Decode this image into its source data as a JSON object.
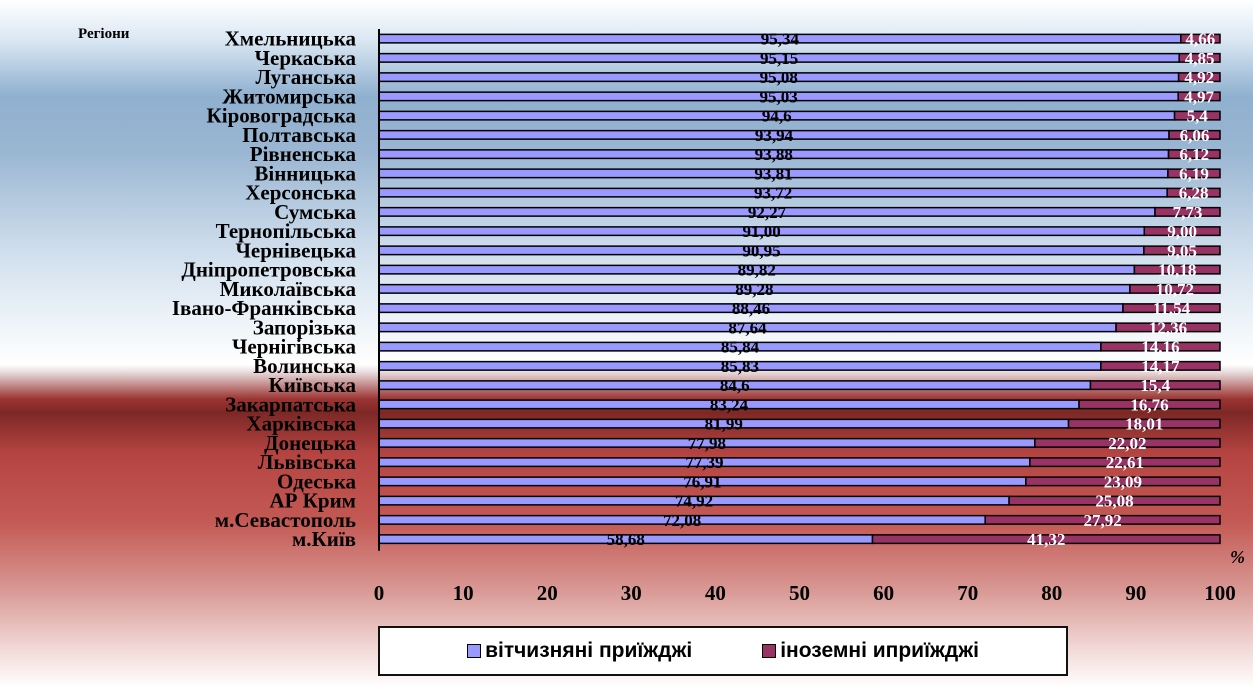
{
  "chart_data": {
    "type": "bar",
    "orientation": "horizontal",
    "stacked": true,
    "title": "",
    "ylabel": "Регіони",
    "xlabel": "%",
    "xlim": [
      0,
      100
    ],
    "xticks": [
      "0",
      "10",
      "20",
      "30",
      "40",
      "50",
      "60",
      "70",
      "80",
      "90",
      "100"
    ],
    "categories": [
      "Хмельницька",
      "Черкаська",
      "Луганська",
      "Житомирська",
      "Кіровоградська",
      "Полтавська",
      "Рівненська",
      "Вінницька",
      "Херсонська",
      "Сумська",
      "Тернопільська",
      "Чернівецька",
      "Дніпропетровська",
      "Миколаївська",
      "Івано-Франківська",
      "Запорізька",
      "Чернігівська",
      "Волинська",
      "Київська",
      "Закарпатська",
      "Харківська",
      "Донецька",
      "Львівська",
      "Одеська",
      "АР Крим",
      "м.Севастополь",
      "м.Київ"
    ],
    "series": [
      {
        "name": "вітчизняні приїжджі",
        "color": "#9999ff",
        "values": [
          95.34,
          95.15,
          95.08,
          95.03,
          94.6,
          93.94,
          93.88,
          93.81,
          93.72,
          92.27,
          91.0,
          90.95,
          89.82,
          89.28,
          88.46,
          87.64,
          85.84,
          85.83,
          84.6,
          83.24,
          81.99,
          77.98,
          77.39,
          76.91,
          74.92,
          72.08,
          58.68
        ],
        "labels": [
          "95,34",
          "95,15",
          "95,08",
          "95,03",
          "94,6",
          "93,94",
          "93,88",
          "93,81",
          "93,72",
          "92,27",
          "91,00",
          "90,95",
          "89,82",
          "89,28",
          "88,46",
          "87,64",
          "85,84",
          "85,83",
          "84,6",
          "83,24",
          "81,99",
          "77,98",
          "77,39",
          "76,91",
          "74,92",
          "72,08",
          "58,68"
        ]
      },
      {
        "name": "іноземні иприїжджі",
        "color": "#993366",
        "values": [
          4.66,
          4.85,
          4.92,
          4.97,
          5.4,
          6.06,
          6.12,
          6.19,
          6.28,
          7.73,
          9.0,
          9.05,
          10.18,
          10.72,
          11.54,
          12.36,
          14.16,
          14.17,
          15.4,
          16.76,
          18.01,
          22.02,
          22.61,
          23.09,
          25.08,
          27.92,
          41.32
        ],
        "labels": [
          "4,66",
          "4,85",
          "4,92",
          "4,97",
          "5,4",
          "6,06",
          "6,12",
          "6,19",
          "6,28",
          "7,73",
          "9,00",
          "9,05",
          "10,18",
          "10,72",
          "11,54",
          "12,36",
          "14,16",
          "14,17",
          "15,4",
          "16,76",
          "18,01",
          "22,02",
          "22,61",
          "23,09",
          "25,08",
          "27,92",
          "41,32"
        ]
      }
    ],
    "legend": {
      "position": "bottom"
    },
    "grid": false
  }
}
